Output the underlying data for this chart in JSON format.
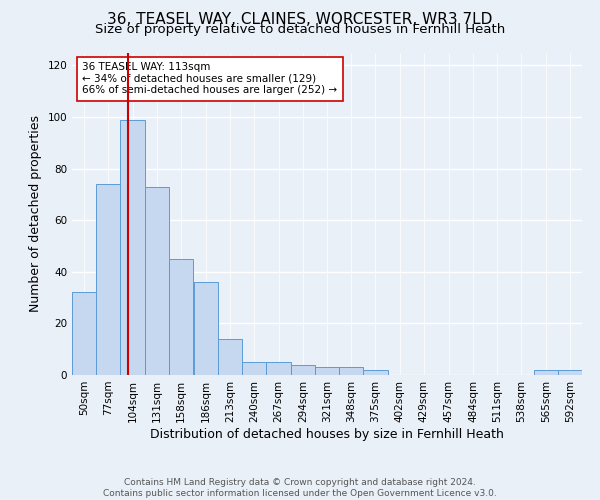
{
  "title": "36, TEASEL WAY, CLAINES, WORCESTER, WR3 7LD",
  "subtitle": "Size of property relative to detached houses in Fernhill Heath",
  "xlabel": "Distribution of detached houses by size in Fernhill Heath",
  "ylabel": "Number of detached properties",
  "footer_line1": "Contains HM Land Registry data © Crown copyright and database right 2024.",
  "footer_line2": "Contains public sector information licensed under the Open Government Licence v3.0.",
  "bin_labels": [
    "50sqm",
    "77sqm",
    "104sqm",
    "131sqm",
    "158sqm",
    "186sqm",
    "213sqm",
    "240sqm",
    "267sqm",
    "294sqm",
    "321sqm",
    "348sqm",
    "375sqm",
    "402sqm",
    "429sqm",
    "457sqm",
    "484sqm",
    "511sqm",
    "538sqm",
    "565sqm",
    "592sqm"
  ],
  "bin_edges": [
    50,
    77,
    104,
    131,
    158,
    186,
    213,
    240,
    267,
    294,
    321,
    348,
    375,
    402,
    429,
    457,
    484,
    511,
    538,
    565,
    592
  ],
  "bar_heights": [
    32,
    74,
    99,
    73,
    45,
    36,
    14,
    5,
    5,
    4,
    3,
    3,
    2,
    0,
    0,
    0,
    0,
    0,
    0,
    2,
    2
  ],
  "bar_color": "#c5d8f0",
  "bar_edge_color": "#5b9bd5",
  "property_size": 113,
  "vline_color": "#cc0000",
  "annotation_text": "36 TEASEL WAY: 113sqm\n← 34% of detached houses are smaller (129)\n66% of semi-detached houses are larger (252) →",
  "annotation_box_color": "#ffffff",
  "annotation_box_edge_color": "#cc0000",
  "ylim": [
    0,
    125
  ],
  "yticks": [
    0,
    20,
    40,
    60,
    80,
    100,
    120
  ],
  "background_color": "#eaf0f8",
  "grid_color": "#ffffff",
  "title_fontsize": 11,
  "subtitle_fontsize": 9.5,
  "axis_label_fontsize": 9,
  "tick_fontsize": 7.5,
  "footer_fontsize": 6.5
}
